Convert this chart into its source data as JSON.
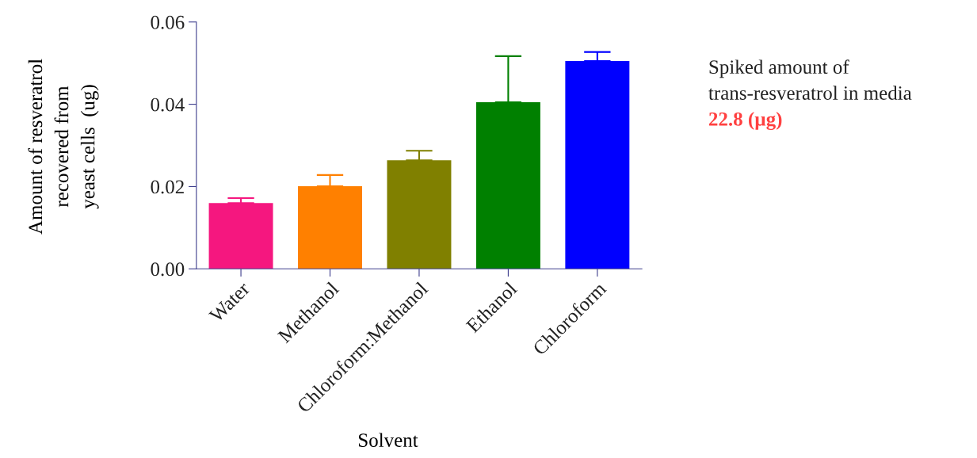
{
  "chart_data": {
    "type": "bar",
    "categories": [
      "Water",
      "Methanol",
      "Chloroform:Methanol",
      "Ethanol",
      "Chloroform"
    ],
    "values": [
      0.016,
      0.0201,
      0.0264,
      0.0405,
      0.0505
    ],
    "errors": [
      [
        0.016,
        0.0172
      ],
      [
        0.0201,
        0.0228
      ],
      [
        0.0264,
        0.0287
      ],
      [
        0.0405,
        0.0517
      ],
      [
        0.0505,
        0.0527
      ]
    ],
    "colors": [
      "#f5177f",
      "#ff8000",
      "#808000",
      "#008000",
      "#0000ff"
    ],
    "xlabel": "Solvent",
    "ylabel": "Amount of resveratrol\nrecovered from\nyeast cells  (ug)",
    "ylim": [
      0,
      0.06
    ],
    "yticks": [
      {
        "value": 0,
        "label": "0.00"
      },
      {
        "value": 0.02,
        "label": "0.02"
      },
      {
        "value": 0.04,
        "label": "0.04"
      },
      {
        "value": 0.06,
        "label": "0.06"
      }
    ],
    "annotations": [
      "Spiked amount of",
      "trans-resveratrol in media",
      "22.8 (µg)"
    ],
    "grid": false,
    "legend": false
  }
}
